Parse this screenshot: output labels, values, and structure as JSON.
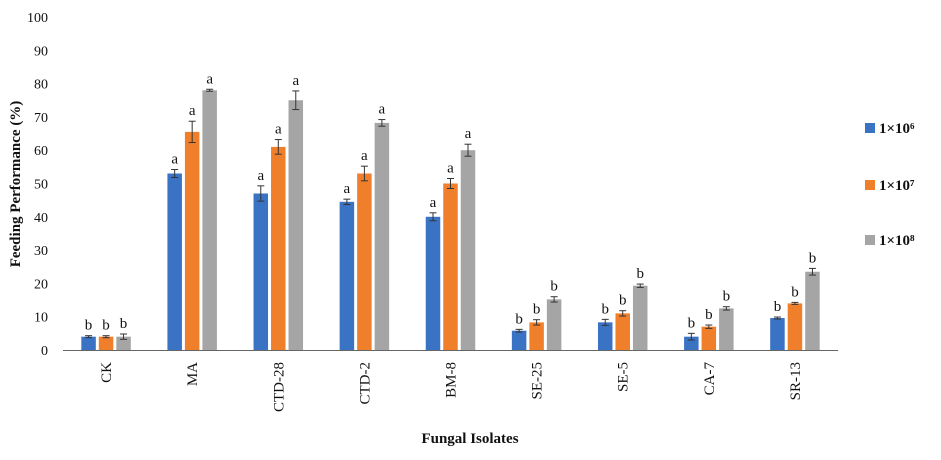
{
  "chart_data": {
    "type": "bar",
    "xlabel": "Fungal Isolates",
    "ylabel": "Feeding Performance (%)",
    "ylim": [
      0,
      100
    ],
    "yticks": [
      0,
      10,
      20,
      30,
      40,
      50,
      60,
      70,
      80,
      90,
      100
    ],
    "grid": false,
    "legend_position": "right",
    "categories": [
      "CK",
      "MA",
      "CTD-28",
      "CTD-2",
      "BM-8",
      "SE-25",
      "SE-5",
      "CA-7",
      "SR-13"
    ],
    "series": [
      {
        "name": "1×10⁶",
        "color": "#3a72c4",
        "values": [
          4,
          53,
          47,
          44.5,
          40,
          5.8,
          8.3,
          4,
          9.6
        ],
        "errors": [
          0.3,
          1.2,
          2.3,
          0.8,
          1.2,
          0.4,
          0.9,
          1.0,
          0.3
        ],
        "labels": [
          "b",
          "a",
          "a",
          "a",
          "a",
          "b",
          "b",
          "b",
          "b"
        ]
      },
      {
        "name": "1×10⁷",
        "color": "#f07f2b",
        "values": [
          4,
          65.5,
          61,
          53,
          50,
          8.3,
          11,
          7,
          14
        ],
        "errors": [
          0.3,
          3.2,
          2.2,
          2.2,
          1.5,
          0.8,
          0.8,
          0.5,
          0.3
        ],
        "labels": [
          "b",
          "a",
          "a",
          "a",
          "a",
          "b",
          "b",
          "b",
          "b"
        ]
      },
      {
        "name": "1×10⁸",
        "color": "#a5a5a5",
        "values": [
          4,
          78,
          75,
          68.2,
          60,
          15.2,
          19.3,
          12.5,
          23.5
        ],
        "errors": [
          0.8,
          0.3,
          2.8,
          1.0,
          1.8,
          0.8,
          0.5,
          0.5,
          1.0
        ],
        "labels": [
          "b",
          "a",
          "a",
          "a",
          "a",
          "b",
          "b",
          "b",
          "b"
        ]
      }
    ]
  }
}
